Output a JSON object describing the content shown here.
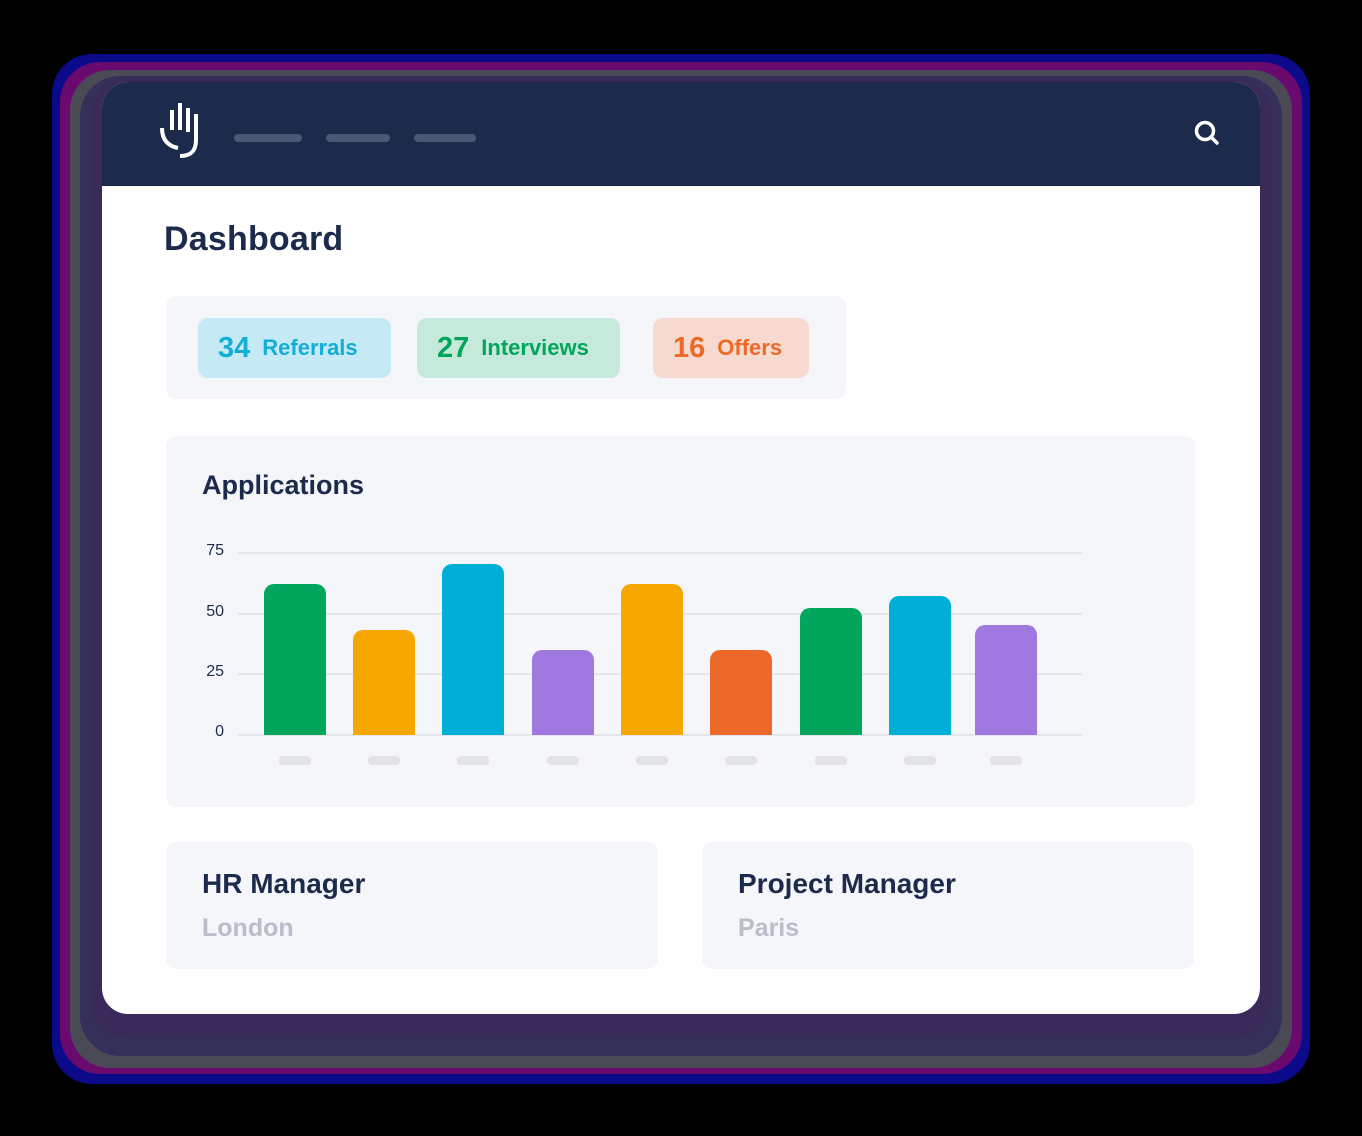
{
  "header": {
    "logo": "hand-logo-icon",
    "nav_items": [
      "",
      "",
      ""
    ],
    "search_icon": "search-icon"
  },
  "page": {
    "title": "Dashboard"
  },
  "stats": [
    {
      "value": "34",
      "label": "Referrals",
      "color": "#11aed8",
      "bg": "#c6eaf5"
    },
    {
      "value": "27",
      "label": "Interviews",
      "color": "#02a55c",
      "bg": "#c5e9da"
    },
    {
      "value": "16",
      "label": "Offers",
      "color": "#ec692a",
      "bg": "#f6dacf"
    }
  ],
  "chart": {
    "title": "Applications",
    "yticks": [
      "75",
      "50",
      "25",
      "0"
    ]
  },
  "chart_data": {
    "type": "bar",
    "title": "Applications",
    "categories": [
      "",
      "",
      "",
      "",
      "",
      "",
      "",
      "",
      ""
    ],
    "values": [
      62,
      43,
      70,
      35,
      62,
      35,
      52,
      57,
      45
    ],
    "colors": [
      "#02a55c",
      "#f6a800",
      "#00afd8",
      "#a078df",
      "#f6a800",
      "#ec692a",
      "#02a55c",
      "#00afd8",
      "#a078df"
    ],
    "xlabel": "",
    "ylabel": "",
    "ylim": [
      0,
      75
    ],
    "yticks": [
      0,
      25,
      50,
      75
    ],
    "grid": true,
    "legend": null
  },
  "jobs": [
    {
      "title": "HR Manager",
      "location": "London"
    },
    {
      "title": "Project Manager",
      "location": "Paris"
    }
  ]
}
